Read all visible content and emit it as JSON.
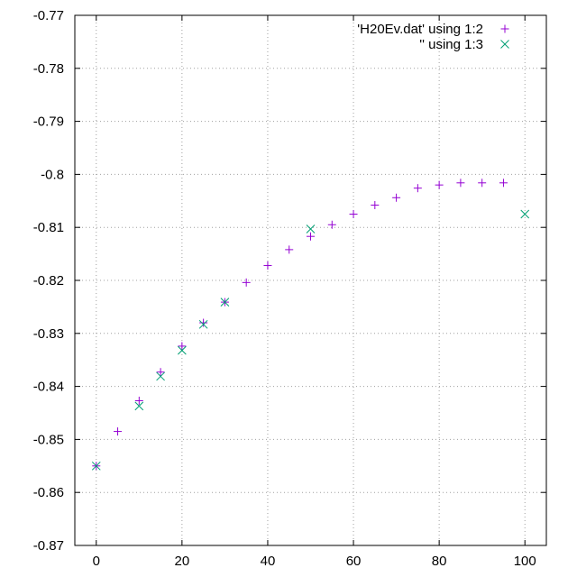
{
  "chart_data": {
    "type": "scatter",
    "title": "",
    "xlabel": "",
    "ylabel": "",
    "xlim": [
      -5,
      105
    ],
    "ylim": [
      -0.87,
      -0.77
    ],
    "xticks": [
      0,
      20,
      40,
      60,
      80,
      100
    ],
    "yticks": [
      -0.87,
      -0.86,
      -0.85,
      -0.84,
      -0.83,
      -0.82,
      -0.81,
      -0.8,
      -0.79,
      -0.78,
      -0.77
    ],
    "grid": true,
    "legend_position": "top-right",
    "series": [
      {
        "name": "'H20Ev.dat' using 1:2",
        "marker": "plus",
        "color": "#9400d3",
        "x": [
          0,
          5,
          10,
          15,
          20,
          25,
          30,
          35,
          40,
          45,
          50,
          55,
          60,
          65,
          70,
          75,
          80,
          85,
          90,
          95
        ],
        "y": [
          -0.855,
          -0.8485,
          -0.8427,
          -0.8373,
          -0.8324,
          -0.828,
          -0.8241,
          -0.8204,
          -0.8172,
          -0.8142,
          -0.8117,
          -0.8095,
          -0.8075,
          -0.8058,
          -0.8044,
          -0.8026,
          -0.802,
          -0.8016,
          -0.8016,
          -0.8016
        ]
      },
      {
        "name": "'' using 1:3",
        "marker": "cross",
        "color": "#009e73",
        "x": [
          0,
          10,
          15,
          20,
          25,
          30,
          50,
          100
        ],
        "y": [
          -0.855,
          -0.8437,
          -0.8381,
          -0.8332,
          -0.8283,
          -0.8241,
          -0.8103,
          -0.8075
        ]
      }
    ]
  }
}
